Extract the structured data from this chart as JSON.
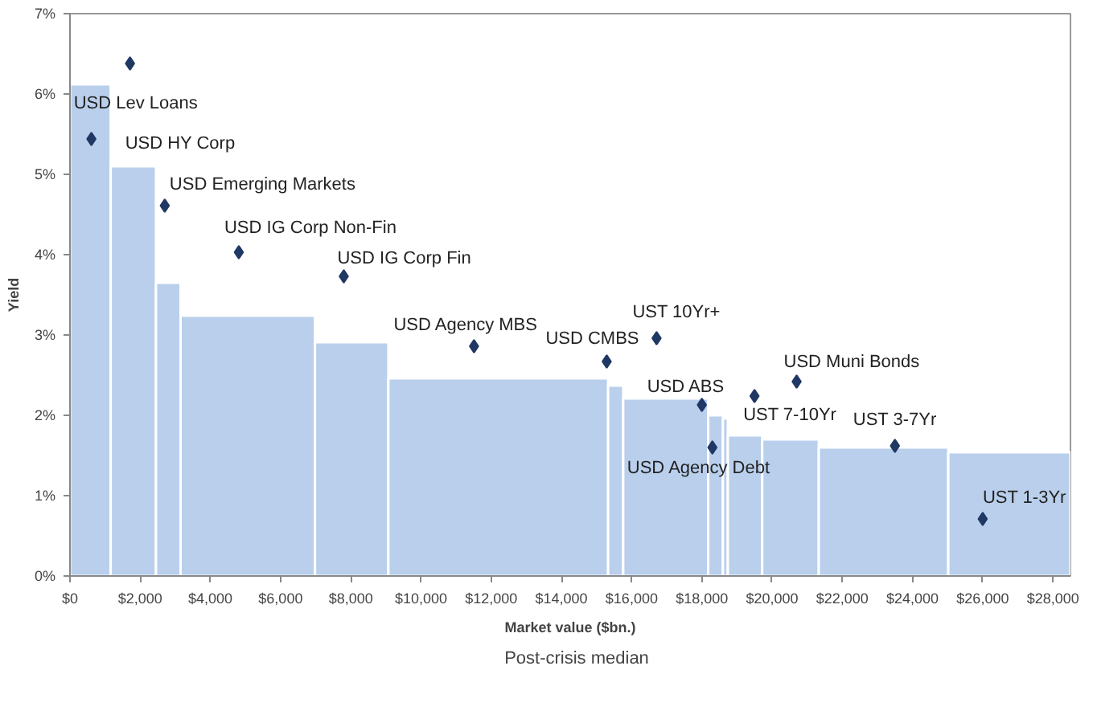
{
  "chart_data": {
    "type": "histogram",
    "xlabel": "Market value ($bn.)",
    "ylabel": "Yield",
    "bins": [
      0,
      1160,
      2450,
      3150,
      6980,
      9070,
      15330,
      15760,
      18180,
      18600,
      18740,
      19720,
      21330,
      25020,
      28500
    ],
    "values": [
      6.12,
      5.1,
      3.65,
      3.24,
      2.91,
      2.46,
      2.37,
      2.21,
      2.0,
      1.96,
      1.75,
      1.7,
      1.6,
      1.54
    ],
    "color": "#b9cfec",
    "series": [
      {
        "type": "scatter",
        "name": "Post-crisis median",
        "color": "#1f3864",
        "x": [
          1710,
          610,
          2700,
          4810,
          7800,
          11510,
          15290,
          16710,
          18000,
          18300,
          19500,
          20700,
          23500,
          26000
        ],
        "values": [
          6.38,
          5.44,
          4.61,
          4.03,
          3.73,
          2.86,
          2.67,
          2.96,
          2.13,
          1.6,
          2.24,
          2.42,
          1.62,
          0.71
        ]
      }
    ],
    "annotations": [
      "USD Lev Loans",
      "USD HY Corp",
      "USD Emerging Markets",
      "USD IG Corp Non-Fin",
      "USD IG Corp Fin",
      "USD Agency MBS",
      "USD CMBS",
      "UST 10Yr+",
      "USD ABS",
      "USD Agency Debt",
      "UST 7-10Yr",
      "USD Muni Bonds",
      "UST 3-7Yr",
      "UST 1-3Yr"
    ],
    "xlim": [
      0,
      28500
    ],
    "xticks": [
      {
        "value": 0,
        "label": "$0"
      },
      {
        "value": 2000,
        "label": "$2,000"
      },
      {
        "value": 4000,
        "label": "$4,000"
      },
      {
        "value": 6000,
        "label": "$6,000"
      },
      {
        "value": 8000,
        "label": "$8,000"
      },
      {
        "value": 10000,
        "label": "$10,000"
      },
      {
        "value": 12000,
        "label": "$12,000"
      },
      {
        "value": 14000,
        "label": "$14,000"
      },
      {
        "value": 16000,
        "label": "$16,000"
      },
      {
        "value": 18000,
        "label": "$18,000"
      },
      {
        "value": 20000,
        "label": "$20,000"
      },
      {
        "value": 22000,
        "label": "$22,000"
      },
      {
        "value": 24000,
        "label": "$24,000"
      },
      {
        "value": 26000,
        "label": "$26,000"
      },
      {
        "value": 28000,
        "label": "$28,000"
      }
    ],
    "ylim": [
      0,
      7
    ],
    "yticks": [
      {
        "value": 0,
        "label": "0%"
      },
      {
        "value": 1,
        "label": "1%"
      },
      {
        "value": 2,
        "label": "2%"
      },
      {
        "value": 3,
        "label": "3%"
      },
      {
        "value": 4,
        "label": "4%"
      },
      {
        "value": 5,
        "label": "5%"
      },
      {
        "value": 6,
        "label": "6%"
      },
      {
        "value": 7,
        "label": "7%"
      }
    ],
    "grid": false,
    "legend": "bottom",
    "marker": "diamond"
  }
}
